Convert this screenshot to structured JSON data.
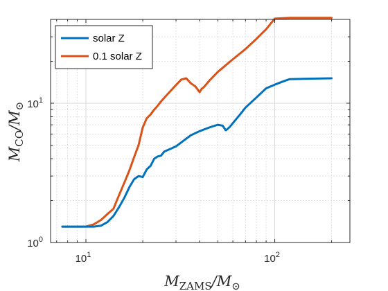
{
  "chart_data": {
    "type": "line",
    "x_scale": "log",
    "y_scale": "log",
    "xlim": [
      6.5,
      250
    ],
    "ylim": [
      1,
      40
    ],
    "grid": true,
    "minor_grid": true,
    "legend_position": "top-left",
    "xlabel": {
      "main": "M",
      "sub": "ZAMS",
      "rest": "/M",
      "sub2": "⊙"
    },
    "ylabel": {
      "main": "M",
      "sub": "CO",
      "rest": "/M",
      "sub2": "⊙"
    },
    "x_ticks": [
      {
        "value": 10,
        "base": "10",
        "exp": "1"
      },
      {
        "value": 100,
        "base": "10",
        "exp": "2"
      }
    ],
    "y_ticks": [
      {
        "value": 1,
        "base": "10",
        "exp": "0"
      },
      {
        "value": 10,
        "base": "10",
        "exp": "1"
      }
    ],
    "series": [
      {
        "name": "solar Z",
        "color": "#0072BD",
        "x": [
          7.5,
          9,
          10,
          11,
          12,
          13,
          14,
          15,
          16,
          17,
          18,
          19,
          20,
          21,
          22,
          23,
          24,
          25,
          26,
          28,
          30,
          33,
          36,
          40,
          45,
          50,
          53,
          55,
          56,
          58,
          60,
          65,
          70,
          80,
          90,
          100,
          110,
          120,
          150,
          200
        ],
        "y": [
          1.3,
          1.3,
          1.3,
          1.3,
          1.32,
          1.4,
          1.55,
          1.8,
          2.1,
          2.5,
          2.85,
          3.0,
          2.95,
          3.35,
          3.55,
          4.0,
          4.15,
          4.2,
          4.5,
          4.7,
          4.9,
          5.4,
          5.9,
          6.3,
          6.7,
          7.0,
          6.9,
          6.4,
          6.5,
          6.8,
          7.2,
          8.2,
          9.3,
          11.0,
          12.8,
          13.6,
          14.3,
          14.9,
          15.0,
          15.1
        ]
      },
      {
        "name": "0.1 solar Z",
        "color": "#D95319",
        "x": [
          7.5,
          9,
          10,
          11,
          12,
          13,
          14,
          15,
          16,
          17,
          18,
          19,
          20,
          21,
          22,
          23,
          24,
          25,
          27,
          30,
          32,
          34,
          36,
          38,
          40,
          41,
          42,
          45,
          50,
          60,
          70,
          80,
          90,
          100,
          120,
          150,
          200
        ],
        "y": [
          1.3,
          1.3,
          1.3,
          1.35,
          1.45,
          1.6,
          1.75,
          2.2,
          2.7,
          3.3,
          4.1,
          5.0,
          6.7,
          7.8,
          8.3,
          9.0,
          9.6,
          10.3,
          11.6,
          13.5,
          14.8,
          15.1,
          13.9,
          13.2,
          12.0,
          12.7,
          13.0,
          14.5,
          16.8,
          20.7,
          24.5,
          29.0,
          34.0,
          40.5,
          41.0,
          41.0,
          41.0
        ]
      }
    ]
  }
}
